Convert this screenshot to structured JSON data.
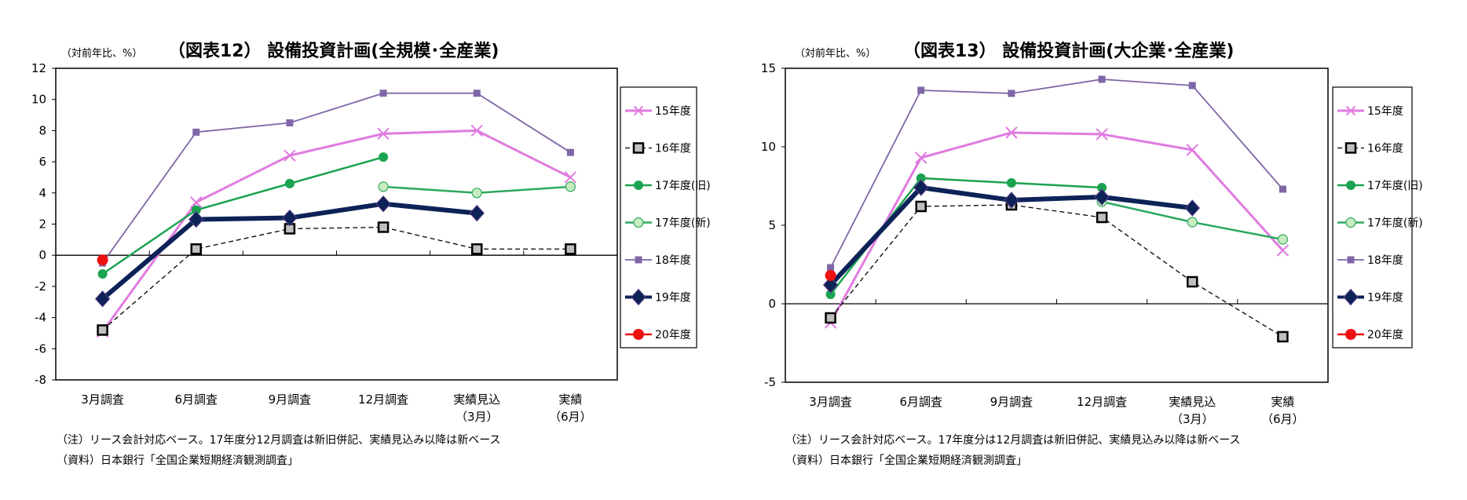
{
  "chart_data": [
    {
      "type": "line",
      "title": "（図表12） 設備投資計画(全規模･全産業)",
      "ylabel": "（対前年比、%）",
      "ylim": [
        -8,
        12
      ],
      "ystep": 2,
      "categories": [
        [
          "3月調査"
        ],
        [
          "6月調査"
        ],
        [
          "9月調査"
        ],
        [
          "12月調査"
        ],
        [
          "実績見込",
          "（3月）"
        ],
        [
          "実績",
          "（6月）"
        ]
      ],
      "legend_position": "right",
      "series": [
        {
          "name": "15年度",
          "style": "x",
          "values": [
            -4.9,
            3.4,
            6.4,
            7.8,
            8.0,
            5.0
          ]
        },
        {
          "name": "16年度",
          "style": "dashsquare",
          "values": [
            -4.8,
            0.4,
            1.7,
            1.8,
            0.4,
            0.4
          ]
        },
        {
          "name": "17年度(旧)",
          "style": "greendot",
          "values": [
            -1.2,
            2.9,
            4.6,
            6.3,
            null,
            null
          ]
        },
        {
          "name": "17年度(新)",
          "style": "lightdot",
          "values": [
            null,
            null,
            null,
            4.4,
            4.0,
            4.4
          ]
        },
        {
          "name": "18年度",
          "style": "purplesq",
          "values": [
            -0.5,
            7.9,
            8.5,
            10.4,
            10.4,
            6.6
          ]
        },
        {
          "name": "19年度",
          "style": "navy",
          "values": [
            -2.8,
            2.3,
            2.4,
            3.3,
            2.7,
            null
          ]
        },
        {
          "name": "20年度",
          "style": "red",
          "values": [
            -0.3,
            null,
            null,
            null,
            null,
            null
          ]
        }
      ],
      "notes": [
        "（注）リース会計対応ベース。17年度分12月調査は新旧併記、実績見込み以降は新ベース",
        "（資料）日本銀行「全国企業短期経済観測調査」"
      ]
    },
    {
      "type": "line",
      "title": "（図表13） 設備投資計画(大企業･全産業)",
      "ylabel": "（対前年比、%）",
      "ylim": [
        -5,
        15
      ],
      "ystep": 5,
      "categories": [
        [
          "3月調査"
        ],
        [
          "6月調査"
        ],
        [
          "9月調査"
        ],
        [
          "12月調査"
        ],
        [
          "実績見込",
          "（3月）"
        ],
        [
          "実績",
          "（6月）"
        ]
      ],
      "legend_position": "right",
      "series": [
        {
          "name": "15年度",
          "style": "x",
          "values": [
            -1.2,
            9.3,
            10.9,
            10.8,
            9.8,
            3.4
          ]
        },
        {
          "name": "16年度",
          "style": "dashsquare",
          "values": [
            -0.9,
            6.2,
            6.3,
            5.5,
            1.4,
            -2.1
          ]
        },
        {
          "name": "17年度(旧)",
          "style": "greendot",
          "values": [
            0.6,
            8.0,
            7.7,
            7.4,
            null,
            null
          ]
        },
        {
          "name": "17年度(新)",
          "style": "lightdot",
          "values": [
            null,
            null,
            null,
            6.5,
            5.2,
            4.1
          ]
        },
        {
          "name": "18年度",
          "style": "purplesq",
          "values": [
            2.3,
            13.6,
            13.4,
            14.3,
            13.9,
            7.3
          ]
        },
        {
          "name": "19年度",
          "style": "navy",
          "values": [
            1.2,
            7.4,
            6.6,
            6.8,
            6.1,
            null
          ]
        },
        {
          "name": "20年度",
          "style": "red",
          "values": [
            1.8,
            null,
            null,
            null,
            null,
            null
          ]
        }
      ],
      "notes": [
        "（注）リース会計対応ベース。17年度分は12月調査は新旧併記、実績見込み以降は新ベース",
        "（資料）日本銀行「全国企業短期経済観測調査」"
      ]
    }
  ],
  "colors": {
    "s15": "#e07be0",
    "s16": "#000000",
    "s17old": "#1aa350",
    "s17new": "#2ea860",
    "s17newfill": "#c8ecc0",
    "s18": "#7f66a6",
    "s19": "#0d2257",
    "s20": "#ee1111"
  }
}
